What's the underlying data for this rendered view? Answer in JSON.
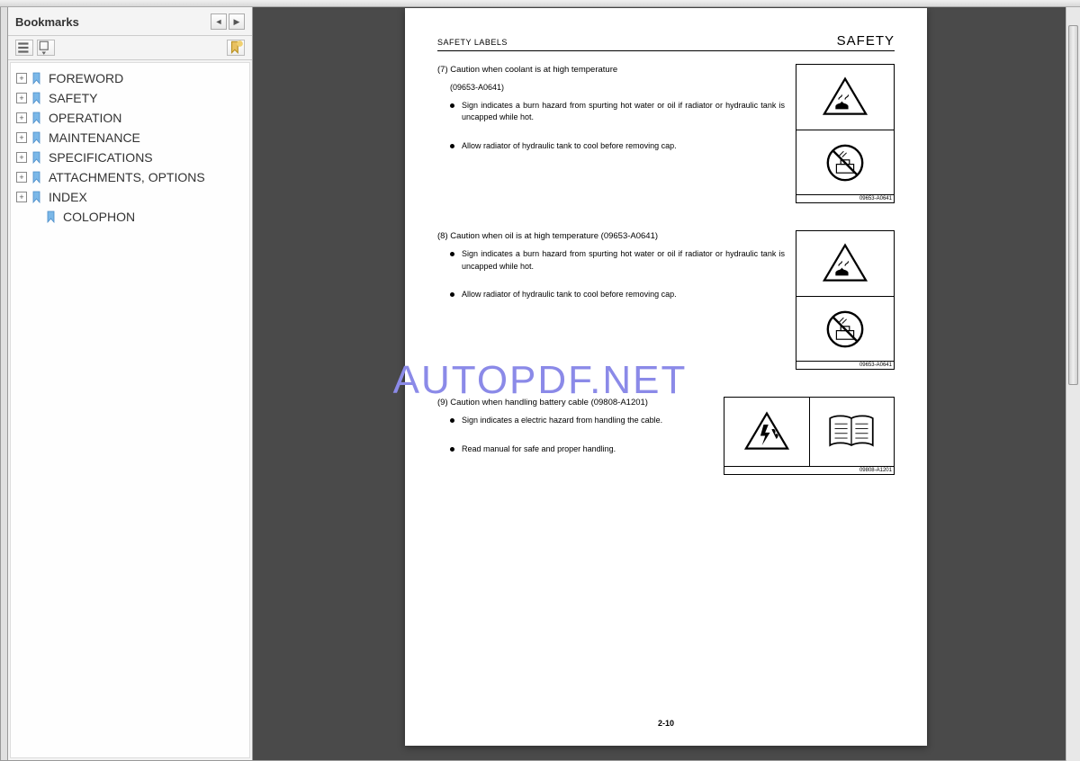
{
  "sidebar": {
    "title": "Bookmarks",
    "items": [
      {
        "label": "FOREWORD",
        "expandable": true
      },
      {
        "label": "SAFETY",
        "expandable": true
      },
      {
        "label": "OPERATION",
        "expandable": true
      },
      {
        "label": "MAINTENANCE",
        "expandable": true
      },
      {
        "label": "SPECIFICATIONS",
        "expandable": true
      },
      {
        "label": "ATTACHMENTS, OPTIONS",
        "expandable": true
      },
      {
        "label": "INDEX",
        "expandable": true
      },
      {
        "label": "COLOPHON",
        "expandable": false
      }
    ]
  },
  "document": {
    "header_left": "SAFETY LABELS",
    "header_right": "SAFETY",
    "page_number": "2-10",
    "sections": [
      {
        "num_title": "(7) Caution when coolant is at high temperature",
        "code": "(09653-A0641)",
        "bullets": [
          "Sign indicates a burn hazard from spurting hot water or oil if radiator or hydraulic tank is uncapped while hot.",
          "Allow radiator of hydraulic tank to cool before removing cap."
        ],
        "label_code": "09653-A0641",
        "layout": "vertical",
        "icons": [
          "burn-hazard",
          "no-uncap"
        ]
      },
      {
        "num_title": "(8) Caution when oil is at high temperature (09653-A0641)",
        "code": "",
        "bullets": [
          "Sign indicates a burn hazard from spurting hot water or oil if radiator or hydraulic tank is uncapped while hot.",
          "Allow radiator of hydraulic tank to cool before removing cap."
        ],
        "label_code": "09653-A0641",
        "layout": "vertical",
        "icons": [
          "burn-hazard",
          "no-uncap"
        ]
      },
      {
        "num_title": "(9) Caution when handling battery cable (09808-A1201)",
        "code": "",
        "bullets": [
          "Sign indicates a electric hazard from handling the cable.",
          "Read manual for safe and proper handling."
        ],
        "label_code": "09808-A1201",
        "layout": "horizontal",
        "icons": [
          "electric-hazard",
          "manual"
        ]
      }
    ]
  },
  "watermark": "AUTOPDF.NET",
  "colors": {
    "sidebar_bg": "#f4f4f4",
    "content_bg": "#4a4a4a",
    "page_bg": "#ffffff",
    "watermark_color": "#8b8ae8",
    "text_color": "#333333",
    "border_color": "#999999"
  }
}
